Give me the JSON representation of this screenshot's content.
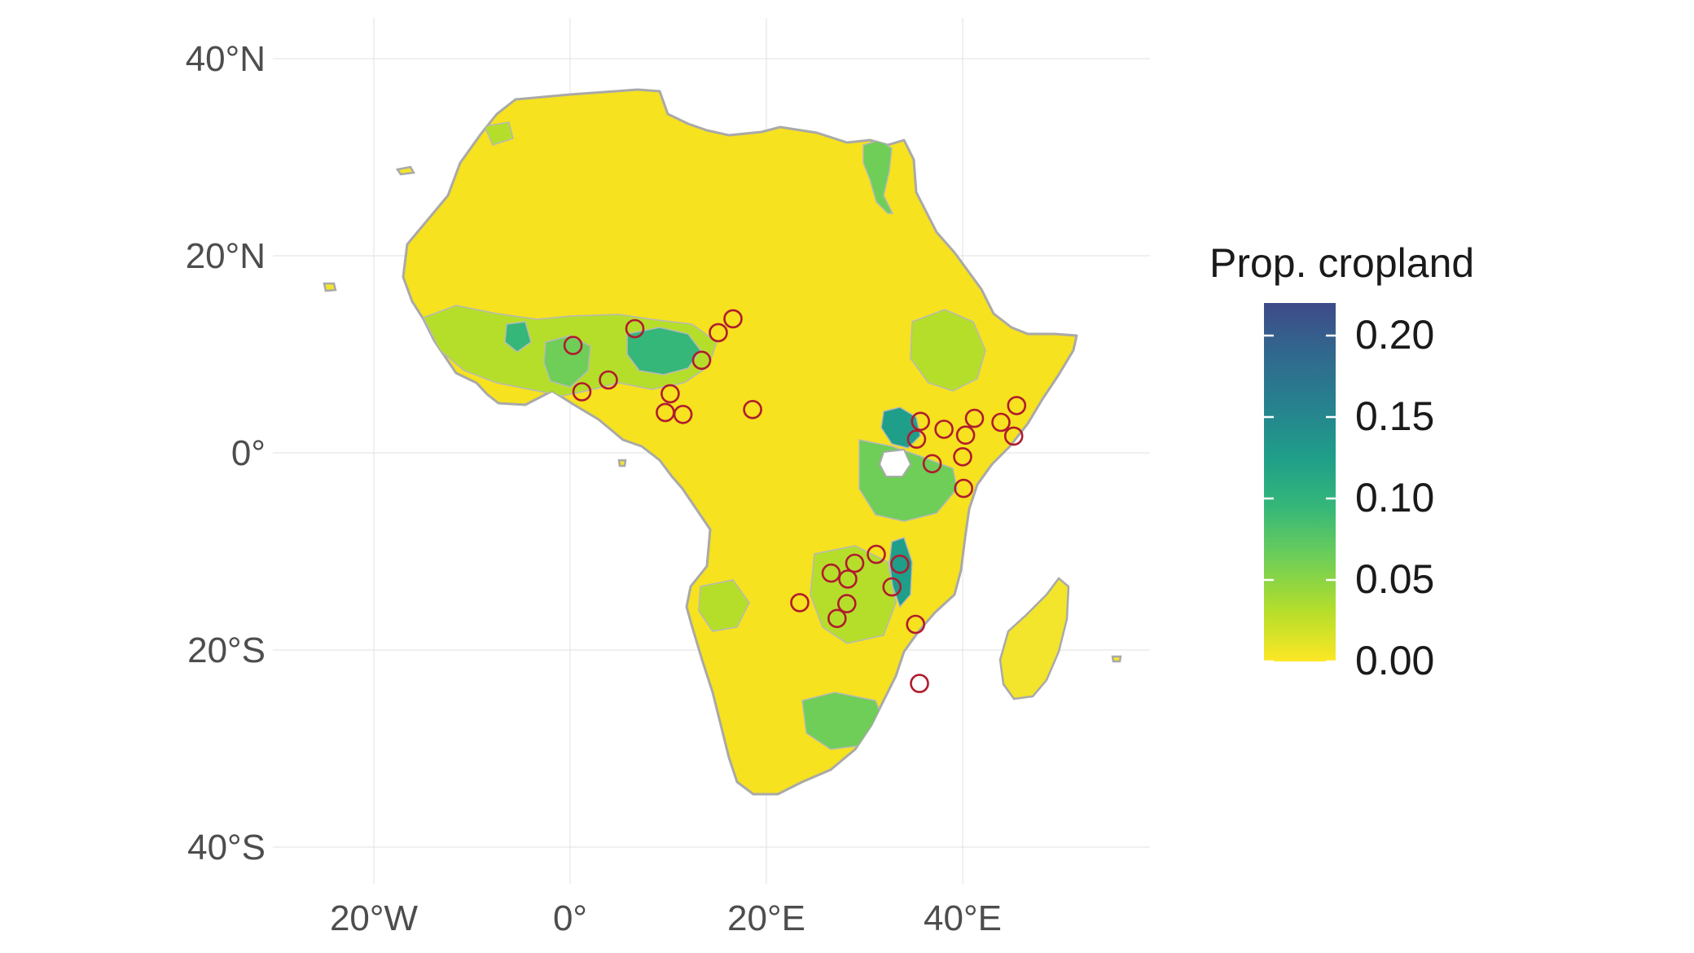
{
  "chart_data": {
    "type": "choropleth-map",
    "title": "",
    "region": "Africa",
    "x_axis": {
      "label": "",
      "range_lon": [
        -28,
        58
      ],
      "ticks": [
        {
          "value": -20,
          "label": "20°W"
        },
        {
          "value": 0,
          "label": "0°"
        },
        {
          "value": 20,
          "label": "20°E"
        },
        {
          "value": 40,
          "label": "40°E"
        }
      ]
    },
    "y_axis": {
      "label": "",
      "range_lat": [
        -44,
        44
      ],
      "ticks": [
        {
          "value": 40,
          "label": "40°N"
        },
        {
          "value": 20,
          "label": "20°N"
        },
        {
          "value": 0,
          "label": "0°"
        },
        {
          "value": -20,
          "label": "20°S"
        },
        {
          "value": -40,
          "label": "40°S"
        }
      ]
    },
    "grid": true,
    "fill_variable": "Prop. cropland",
    "legend": {
      "title": "Prop. cropland",
      "placement": "right",
      "scale": "viridis (reversed)",
      "range": [
        0,
        0.22
      ],
      "ticks": [
        {
          "value": 0.2,
          "label": "0.20"
        },
        {
          "value": 0.15,
          "label": "0.15"
        },
        {
          "value": 0.1,
          "label": "0.10"
        },
        {
          "value": 0.05,
          "label": "0.05"
        },
        {
          "value": 0.0,
          "label": "0.00"
        }
      ],
      "colors": [
        "#fde725",
        "#b5de2b",
        "#6ece58",
        "#35b779",
        "#1f9e89",
        "#26828e",
        "#31688e",
        "#3e4a89"
      ]
    },
    "site_marker_color": "#b01b2e",
    "sites": [
      {
        "lon": 0.3,
        "lat": 10.9
      },
      {
        "lon": 1.2,
        "lat": 6.2
      },
      {
        "lon": 3.9,
        "lat": 7.4
      },
      {
        "lon": 6.6,
        "lat": 12.6
      },
      {
        "lon": 10.2,
        "lat": 6.0
      },
      {
        "lon": 9.7,
        "lat": 4.1
      },
      {
        "lon": 11.5,
        "lat": 3.9
      },
      {
        "lon": 13.4,
        "lat": 9.4
      },
      {
        "lon": 15.1,
        "lat": 12.2
      },
      {
        "lon": 16.6,
        "lat": 13.6
      },
      {
        "lon": 18.6,
        "lat": 4.4
      },
      {
        "lon": 35.7,
        "lat": 3.2
      },
      {
        "lon": 35.3,
        "lat": 1.4
      },
      {
        "lon": 36.9,
        "lat": -1.1
      },
      {
        "lon": 38.1,
        "lat": 2.4
      },
      {
        "lon": 40.3,
        "lat": 1.8
      },
      {
        "lon": 41.2,
        "lat": 3.5
      },
      {
        "lon": 40.0,
        "lat": -0.4
      },
      {
        "lon": 40.1,
        "lat": -3.6
      },
      {
        "lon": 43.9,
        "lat": 3.1
      },
      {
        "lon": 45.5,
        "lat": 4.8
      },
      {
        "lon": 45.2,
        "lat": 1.7
      },
      {
        "lon": 31.2,
        "lat": -10.3
      },
      {
        "lon": 29.0,
        "lat": -11.2
      },
      {
        "lon": 26.6,
        "lat": -12.2
      },
      {
        "lon": 28.3,
        "lat": -12.8
      },
      {
        "lon": 23.4,
        "lat": -15.2
      },
      {
        "lon": 28.2,
        "lat": -15.3
      },
      {
        "lon": 27.2,
        "lat": -16.8
      },
      {
        "lon": 33.6,
        "lat": -11.3
      },
      {
        "lon": 32.8,
        "lat": -13.6
      },
      {
        "lon": 35.2,
        "lat": -17.4
      },
      {
        "lon": 35.6,
        "lat": -23.4
      }
    ]
  }
}
